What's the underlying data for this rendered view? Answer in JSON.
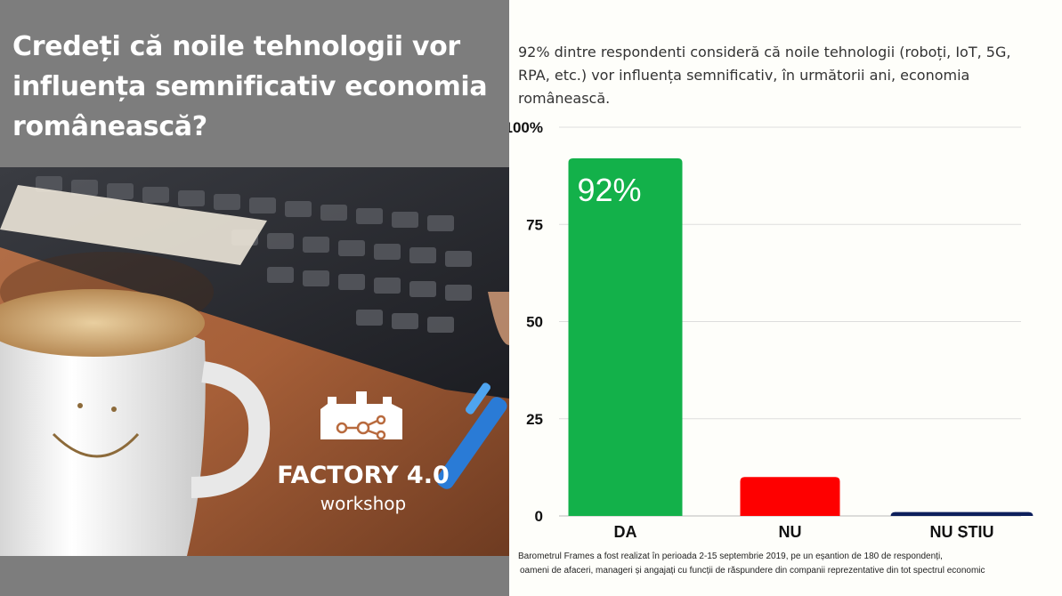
{
  "left_panel": {
    "title": "Credeți că noile tehnologii vor influența semnificativ economia românească?",
    "logo": {
      "name": "FACTORY 4.0",
      "tagline": "workshop",
      "icon": "factory-network-icon"
    }
  },
  "subtitle": "92% dintre respondenti consideră că noile tehnologii (roboți, IoT, 5G, RPA, etc.) vor influența semnificativ, în următorii ani, economia românească.",
  "footnote": {
    "line1": "Barometrul Frames a fost realizat în perioada 2-15 septembrie 2019,  pe un eșantion  de 180 de respondenți,",
    "line2": "oameni de afaceri, manageri și angajați cu funcții de răspundere din companii reprezentative din tot spectrul economic"
  },
  "chart_data": {
    "type": "bar",
    "title": "",
    "xlabel": "",
    "ylabel": "",
    "categories": [
      "DA",
      "NU",
      "NU ȘTIU"
    ],
    "values": [
      92,
      10,
      1
    ],
    "colors": [
      "#13b14a",
      "#fe0000",
      "#0d1f5c"
    ],
    "data_labels": [
      "92%",
      "",
      ""
    ],
    "ylim": [
      0,
      100
    ],
    "y_ticks": [
      0,
      25,
      50,
      75,
      100
    ],
    "y_tick_labels": [
      "0",
      "25",
      "50",
      "75",
      "100%"
    ],
    "grid": true,
    "legend": "none"
  }
}
